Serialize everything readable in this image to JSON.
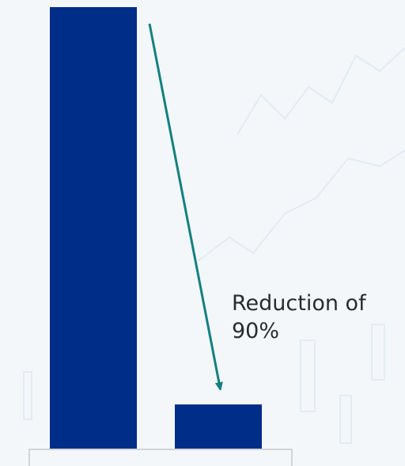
{
  "chart_data": {
    "type": "bar",
    "categories": [
      "",
      ""
    ],
    "values": [
      100,
      10
    ],
    "title": "",
    "xlabel": "",
    "ylabel": "",
    "ylim": [
      0,
      100
    ],
    "grid": false,
    "legend": "none",
    "annotation": {
      "line1": "Reduction of",
      "line2": "90%"
    }
  },
  "colors": {
    "bar": "#002d88",
    "arrow": "#138080",
    "text": "#2b2b2b",
    "axis_box": "#c9c9c9",
    "background": "#f3f7fa",
    "watermark": "#e4ebf1"
  }
}
